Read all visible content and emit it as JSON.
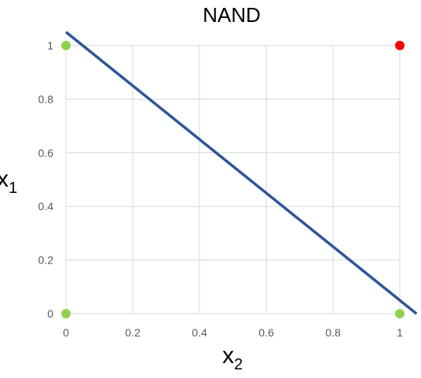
{
  "chart_data": {
    "type": "scatter",
    "title": "NAND",
    "xlabel": {
      "base": "x",
      "sub": "2"
    },
    "ylabel": {
      "base": "x",
      "sub": "1"
    },
    "xlim": [
      0,
      1
    ],
    "ylim": [
      0,
      1
    ],
    "grid": true,
    "x_ticks": [
      "0",
      "0.2",
      "0.4",
      "0.6",
      "0.8",
      "1"
    ],
    "y_ticks": [
      "0",
      "0.2",
      "0.4",
      "0.6",
      "0.8",
      "1"
    ],
    "points": [
      {
        "x": 0,
        "y": 0,
        "color": "#92d050"
      },
      {
        "x": 0,
        "y": 1,
        "color": "#92d050"
      },
      {
        "x": 1,
        "y": 0,
        "color": "#92d050"
      },
      {
        "x": 1,
        "y": 1,
        "color": "#ff0000"
      }
    ],
    "boundary_line": {
      "x1": 0,
      "y1": 1.05,
      "x2": 1.05,
      "y2": 0,
      "color": "#2f5597"
    },
    "grid_color": "#d9d9d9"
  }
}
